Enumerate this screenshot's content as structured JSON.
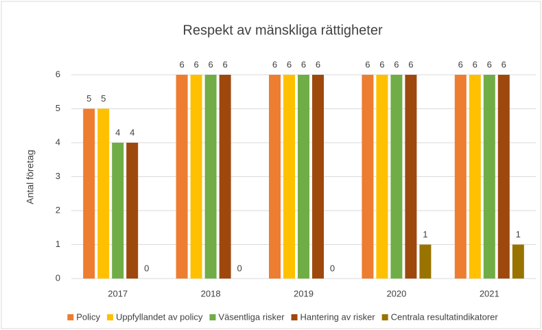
{
  "chart_data": {
    "type": "bar",
    "title": "Respekt av mänskliga rättigheter",
    "y_label": "Antal företag",
    "categories": [
      "2017",
      "2018",
      "2019",
      "2020",
      "2021"
    ],
    "series": [
      {
        "name": "Policy",
        "color": "#ed7d31",
        "values": [
          5,
          6,
          6,
          6,
          6
        ]
      },
      {
        "name": "Uppfyllandet av policy",
        "color": "#ffc000",
        "values": [
          5,
          6,
          6,
          6,
          6
        ]
      },
      {
        "name": "Väsentliga risker",
        "color": "#70ad47",
        "values": [
          4,
          6,
          6,
          6,
          6
        ]
      },
      {
        "name": "Hantering av risker",
        "color": "#9e480e",
        "values": [
          4,
          6,
          6,
          6,
          6
        ]
      },
      {
        "name": "Centrala resultatindikatorer",
        "color": "#997300",
        "values": [
          0,
          0,
          0,
          1,
          1
        ]
      }
    ],
    "ylim": [
      0,
      6
    ],
    "yticks": [
      0,
      1,
      2,
      3,
      4,
      5,
      6
    ],
    "grid": true,
    "legend": "bottom"
  }
}
